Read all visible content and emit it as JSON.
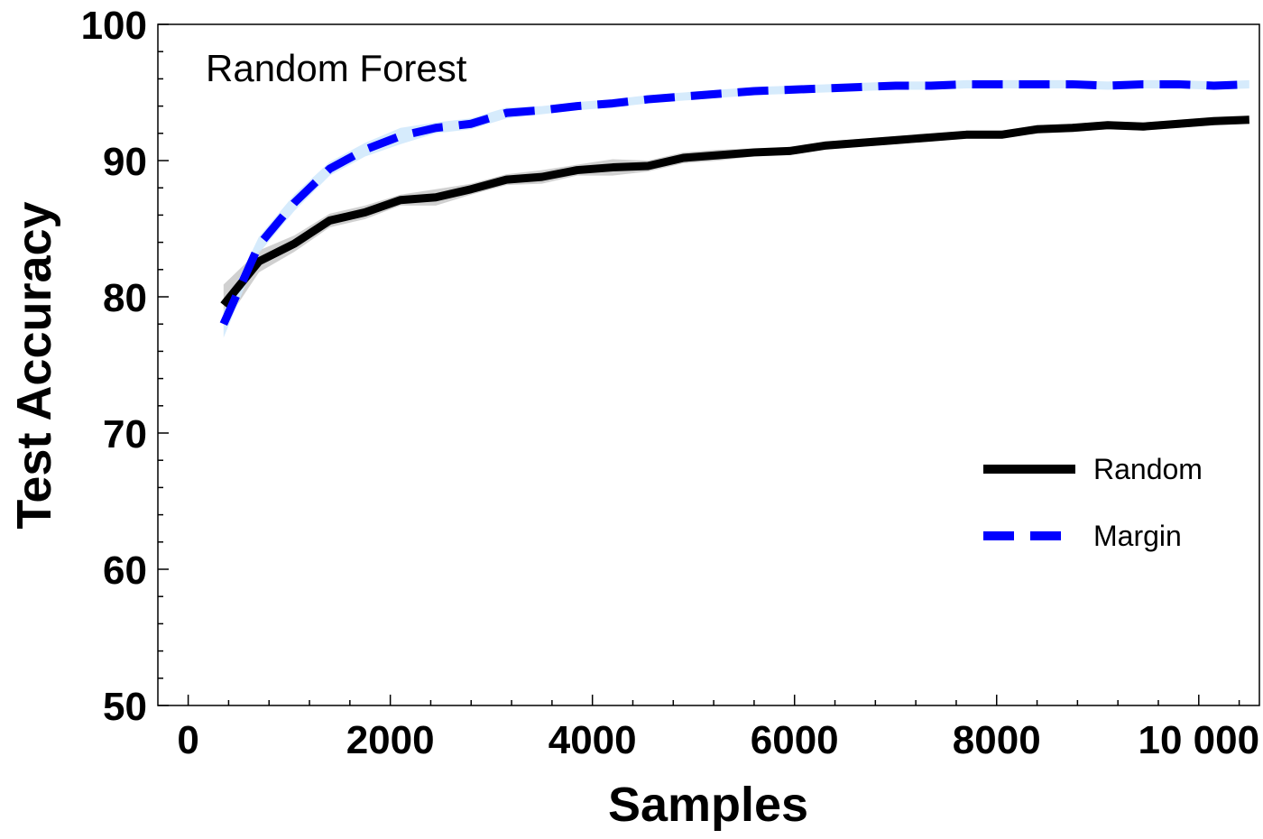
{
  "chart_data": {
    "type": "line",
    "title": "",
    "annotation": "Random Forest",
    "xlabel": "Samples",
    "ylabel": "Test Accuracy",
    "xlim": [
      -300,
      10600
    ],
    "ylim": [
      50,
      100
    ],
    "x_ticks": [
      0,
      2000,
      4000,
      6000,
      8000,
      10000
    ],
    "x_tick_labels": [
      "0",
      "2000",
      "4000",
      "6000",
      "8000",
      "10 000"
    ],
    "y_ticks": [
      50,
      60,
      70,
      80,
      90,
      100
    ],
    "y_tick_labels": [
      "50",
      "60",
      "70",
      "80",
      "90",
      "100"
    ],
    "grid": false,
    "legend_position": "right",
    "series": [
      {
        "name": "Random",
        "color": "#000000",
        "style": "solid",
        "band_color": "#c8c8c8",
        "x": [
          350,
          700,
          1050,
          1400,
          1750,
          2100,
          2450,
          2800,
          3150,
          3500,
          3850,
          4200,
          4550,
          4900,
          5250,
          5600,
          5950,
          6300,
          6650,
          7000,
          7350,
          7700,
          8050,
          8400,
          8750,
          9100,
          9450,
          9800,
          10150,
          10500
        ],
        "y": [
          79.4,
          82.6,
          83.9,
          85.6,
          86.2,
          87.1,
          87.3,
          87.9,
          88.6,
          88.8,
          89.3,
          89.5,
          89.6,
          90.2,
          90.4,
          90.6,
          90.7,
          91.1,
          91.3,
          91.5,
          91.7,
          91.9,
          91.9,
          92.3,
          92.4,
          92.6,
          92.5,
          92.7,
          92.9,
          93.0
        ],
        "band": [
          1.5,
          0.8,
          0.6,
          0.5,
          0.5,
          0.4,
          0.6,
          0.4,
          0.4,
          0.5,
          0.4,
          0.6,
          0.4,
          0.4,
          0.4,
          0.3,
          0.3,
          0.3,
          0.3,
          0.3,
          0.3,
          0.3,
          0.3,
          0.3,
          0.3,
          0.3,
          0.3,
          0.3,
          0.3,
          0.3
        ]
      },
      {
        "name": "Margin",
        "color": "#0000ff",
        "style": "dashed",
        "band_color": "#cfe8fb",
        "x": [
          350,
          700,
          1050,
          1400,
          1750,
          2100,
          2450,
          2800,
          3150,
          3500,
          3850,
          4200,
          4550,
          4900,
          5250,
          5600,
          5950,
          6300,
          6650,
          7000,
          7350,
          7700,
          8050,
          8400,
          8750,
          9100,
          9450,
          9800,
          10150,
          10500
        ],
        "y": [
          78.0,
          83.8,
          86.9,
          89.4,
          90.8,
          91.8,
          92.4,
          92.7,
          93.5,
          93.7,
          94.0,
          94.2,
          94.5,
          94.7,
          94.9,
          95.1,
          95.2,
          95.3,
          95.4,
          95.5,
          95.5,
          95.6,
          95.6,
          95.6,
          95.6,
          95.5,
          95.6,
          95.6,
          95.5,
          95.6
        ],
        "band": [
          1.0,
          0.6,
          0.6,
          0.5,
          0.5,
          0.6,
          0.4,
          0.4,
          0.4,
          0.3,
          0.3,
          0.3,
          0.3,
          0.3,
          0.3,
          0.3,
          0.3,
          0.3,
          0.3,
          0.3,
          0.3,
          0.3,
          0.3,
          0.3,
          0.3,
          0.3,
          0.3,
          0.3,
          0.3,
          0.3
        ]
      }
    ]
  }
}
